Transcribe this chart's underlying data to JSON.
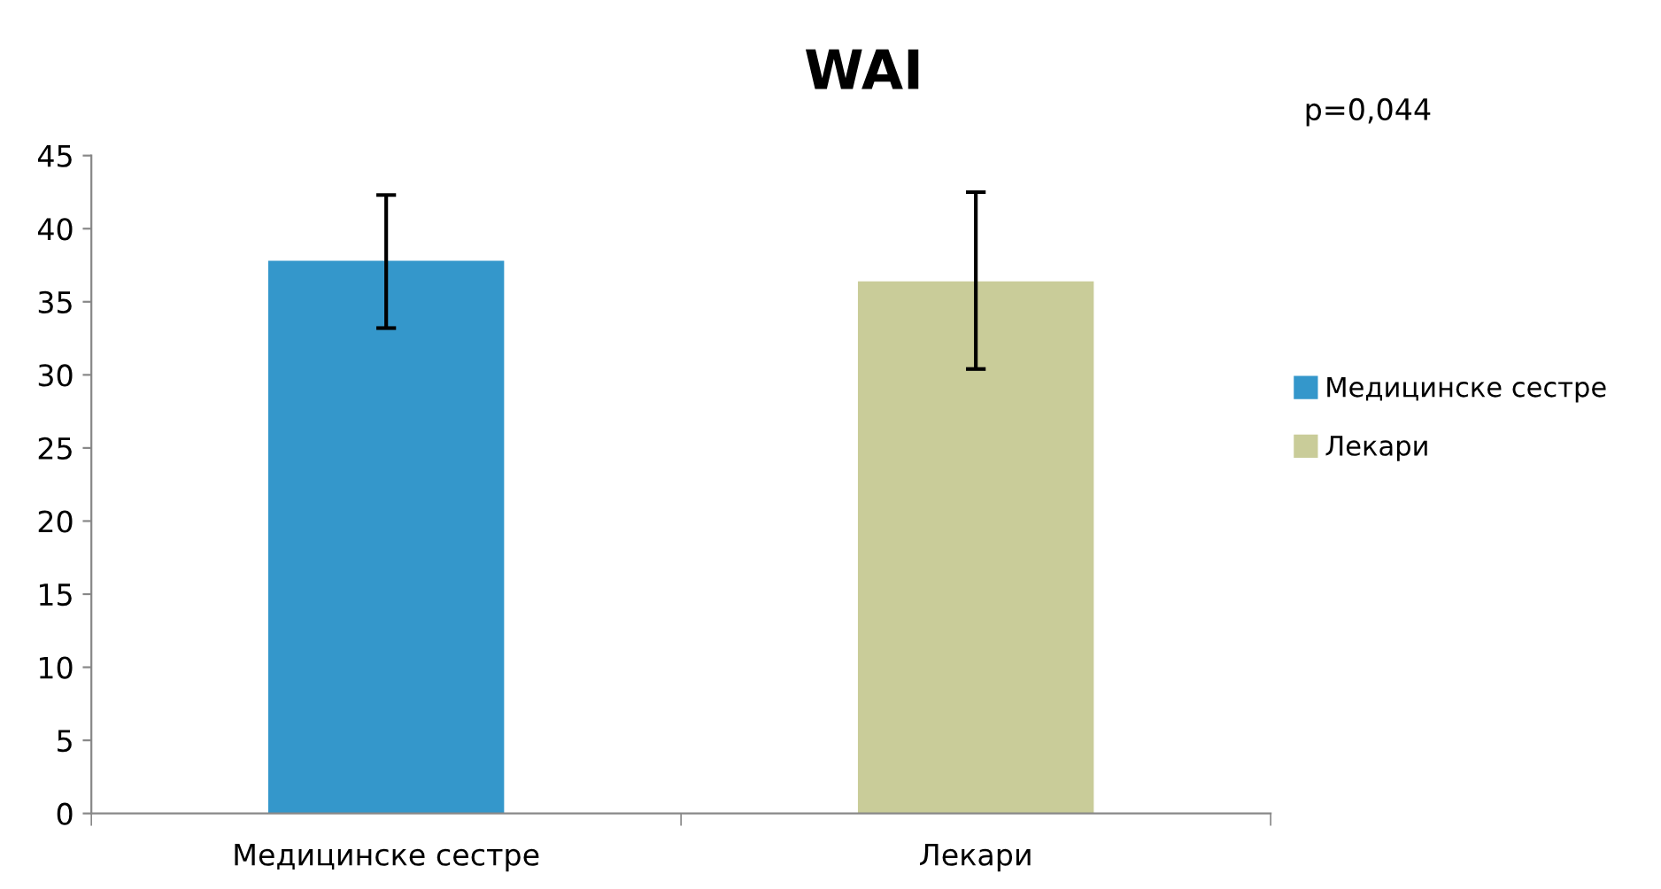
{
  "chart_data": {
    "type": "bar",
    "title": "WAI",
    "categories": [
      "Медицинске сестре",
      "Лекари"
    ],
    "series": [
      {
        "name": "Медицинске сестре",
        "color": "#3497cb",
        "values": [
          37.8,
          null
        ],
        "errors": [
          [
            33.2,
            42.3
          ],
          null
        ]
      },
      {
        "name": "Лекари",
        "color": "#c9cc99",
        "values": [
          null,
          36.4
        ],
        "errors": [
          null,
          [
            30.4,
            42.5
          ]
        ]
      }
    ],
    "ylim": [
      0,
      45
    ],
    "yticks": [
      0,
      5,
      10,
      15,
      20,
      25,
      30,
      35,
      40,
      45
    ],
    "grid": false,
    "legend": "right",
    "annotations": [
      "p=0,044"
    ]
  }
}
